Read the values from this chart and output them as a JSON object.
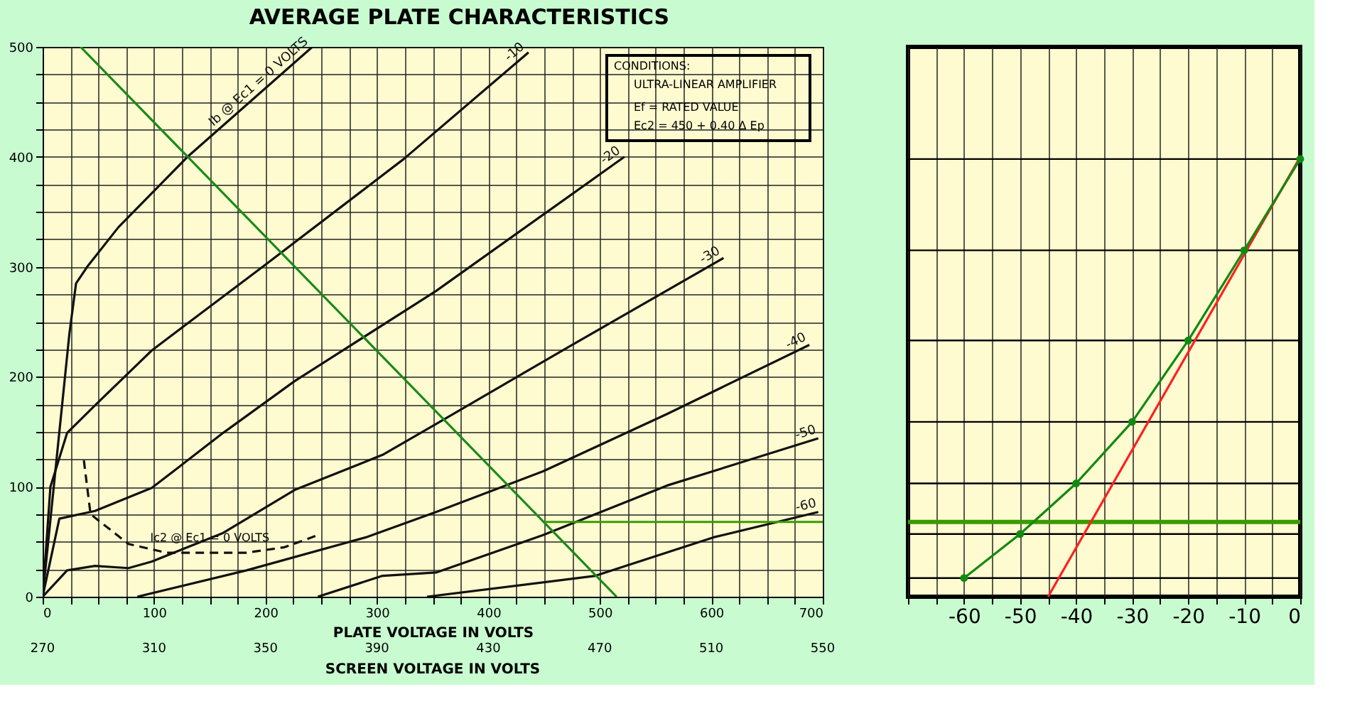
{
  "chart_data": [
    {
      "type": "line",
      "title": "AVERAGE PLATE CHARACTERISTICS",
      "xlabel": "PLATE VOLTAGE IN VOLTS",
      "x2label": "SCREEN VOLTAGE IN VOLTS",
      "annotations": [
        "CONDITIONS:",
        "ULTRA-LINEAR AMPLIFIER",
        "Ef = RATED VALUE",
        "Ec2 = 450 + 0.40 Δ Ep",
        {
          "text": "Ic2 @ Ec1 = 0 VOLTS",
          "x": 150,
          "y": 45
        }
      ],
      "xlim": [
        0,
        700
      ],
      "ylim": [
        0,
        500
      ],
      "x2lim": [
        270,
        550
      ],
      "xticks": [
        0,
        {
          "value": 25,
          "label": null
        },
        {
          "value": 50,
          "label": null
        },
        {
          "value": 75,
          "label": null
        },
        100,
        {
          "value": 125,
          "label": null
        },
        {
          "value": 150,
          "label": null
        },
        {
          "value": 175,
          "label": null
        },
        200,
        {
          "value": 225,
          "label": null
        },
        {
          "value": 250,
          "label": null
        },
        {
          "value": 275,
          "label": null
        },
        300,
        {
          "value": 325,
          "label": null
        },
        {
          "value": 350,
          "label": null
        },
        {
          "value": 375,
          "label": null
        },
        400,
        {
          "value": 425,
          "label": null
        },
        {
          "value": 450,
          "label": null
        },
        {
          "value": 475,
          "label": null
        },
        500,
        {
          "value": 525,
          "label": null
        },
        {
          "value": 550,
          "label": null
        },
        {
          "value": 575,
          "label": null
        },
        600,
        {
          "value": 625,
          "label": null
        },
        {
          "value": 650,
          "label": null
        },
        {
          "value": 675,
          "label": null
        },
        700
      ],
      "yticks": [
        0,
        {
          "value": 25,
          "label": null
        },
        {
          "value": 50,
          "label": null
        },
        {
          "value": 75,
          "label": null
        },
        100,
        {
          "value": 125,
          "label": null
        },
        {
          "value": 150,
          "label": null
        },
        {
          "value": 175,
          "label": null
        },
        200,
        {
          "value": 225,
          "label": null
        },
        {
          "value": 250,
          "label": null
        },
        {
          "value": 275,
          "label": null
        },
        300,
        {
          "value": 325,
          "label": null
        },
        {
          "value": 350,
          "label": null
        },
        {
          "value": 375,
          "label": null
        },
        400,
        {
          "value": 425,
          "label": null
        },
        {
          "value": 450,
          "label": null
        },
        {
          "value": 475,
          "label": null
        },
        500
      ],
      "x2ticks": [
        270,
        310,
        350,
        390,
        430,
        470,
        510,
        550
      ],
      "grid": true,
      "legend": false,
      "series": [
        {
          "name": "Ib @ Ec1 = 0 VOLTS",
          "color": "#111111",
          "x": [
            0,
            12,
            24,
            30,
            40,
            68,
            130,
            242
          ],
          "values": [
            0,
            120,
            239,
            285,
            300,
            336,
            400,
            500
          ]
        },
        {
          "name": "-10",
          "color": "#111111",
          "x": [
            0,
            7,
            22,
            47,
            98,
            200,
            324,
            436
          ],
          "values": [
            0,
            100,
            149,
            174,
            224,
            302,
            398,
            495
          ]
        },
        {
          "name": "-20",
          "color": "#111111",
          "x": [
            0,
            15,
            47,
            98,
            162,
            226,
            353,
            522
          ],
          "values": [
            0,
            71,
            78,
            99,
            149,
            196,
            278,
            400
          ]
        },
        {
          "name": "-30",
          "color": "#111111",
          "x": [
            0,
            22,
            47,
            77,
            98,
            162,
            226,
            305,
            353,
            475,
            611
          ],
          "values": [
            0,
            24,
            28,
            26,
            32,
            58,
            97,
            129,
            157,
            229,
            308
          ]
        },
        {
          "name": "-40",
          "color": "#111111",
          "x": [
            85,
            183,
            290,
            353,
            449,
            560,
            688
          ],
          "values": [
            0,
            24,
            54,
            77,
            114,
            166,
            229
          ]
        },
        {
          "name": "-50",
          "color": "#111111",
          "x": [
            247,
            305,
            353,
            449,
            560,
            696
          ],
          "values": [
            0,
            19,
            22,
            56,
            101,
            144
          ]
        },
        {
          "name": "-60",
          "color": "#111111",
          "x": [
            345,
            496,
            602,
            696
          ],
          "values": [
            0,
            19,
            54,
            77
          ]
        },
        {
          "color": "#111111",
          "line_style": "dashed",
          "x": [
            37,
            43,
            77,
            111,
            183,
            217,
            247
          ],
          "values": [
            124,
            75,
            48,
            40,
            40,
            45,
            56
          ]
        },
        {
          "color": "#1a8a1a",
          "x": [
            34,
            515
          ],
          "values": [
            500,
            0
          ]
        },
        {
          "color": "#3a9a00",
          "x": [
            450,
            700
          ],
          "values": [
            68,
            68
          ]
        }
      ]
    },
    {
      "type": "line",
      "xlim": [
        -70,
        0
      ],
      "ylim": [
        0,
        500
      ],
      "xticks": [
        {
          "value": -70,
          "label": null
        },
        {
          "value": -65,
          "label": null
        },
        -60,
        {
          "value": -55,
          "label": null
        },
        -50,
        {
          "value": -45,
          "label": null
        },
        -40,
        {
          "value": -35,
          "label": null
        },
        -30,
        {
          "value": -25,
          "label": null
        },
        -20,
        {
          "value": -15,
          "label": null
        },
        -10,
        {
          "value": -5,
          "label": null
        },
        0
      ],
      "tick_labels": "x",
      "grid": "x",
      "legend": false,
      "ref_lines": [
        {
          "axis": "y",
          "value": 17,
          "color": "#000000"
        },
        {
          "axis": "y",
          "value": 57,
          "color": "#000000"
        },
        {
          "axis": "y",
          "value": 103,
          "color": "#000000"
        },
        {
          "axis": "y",
          "value": 159,
          "color": "#000000"
        },
        {
          "axis": "y",
          "value": 233,
          "color": "#000000"
        },
        {
          "axis": "y",
          "value": 315,
          "color": "#000000"
        },
        {
          "axis": "y",
          "value": 398,
          "color": "#000000"
        },
        {
          "axis": "y",
          "value": 68,
          "color": "#3a9a00"
        }
      ],
      "series": [
        {
          "color": "#ff2020",
          "x": [
            -45,
            0
          ],
          "values": [
            0,
            400
          ]
        },
        {
          "color": "#118a11",
          "marker": "circle",
          "x": [
            -60,
            -50,
            -40,
            -30,
            -20,
            -10,
            0
          ],
          "values": [
            17,
            57,
            103,
            159,
            233,
            315,
            398
          ]
        }
      ]
    }
  ]
}
